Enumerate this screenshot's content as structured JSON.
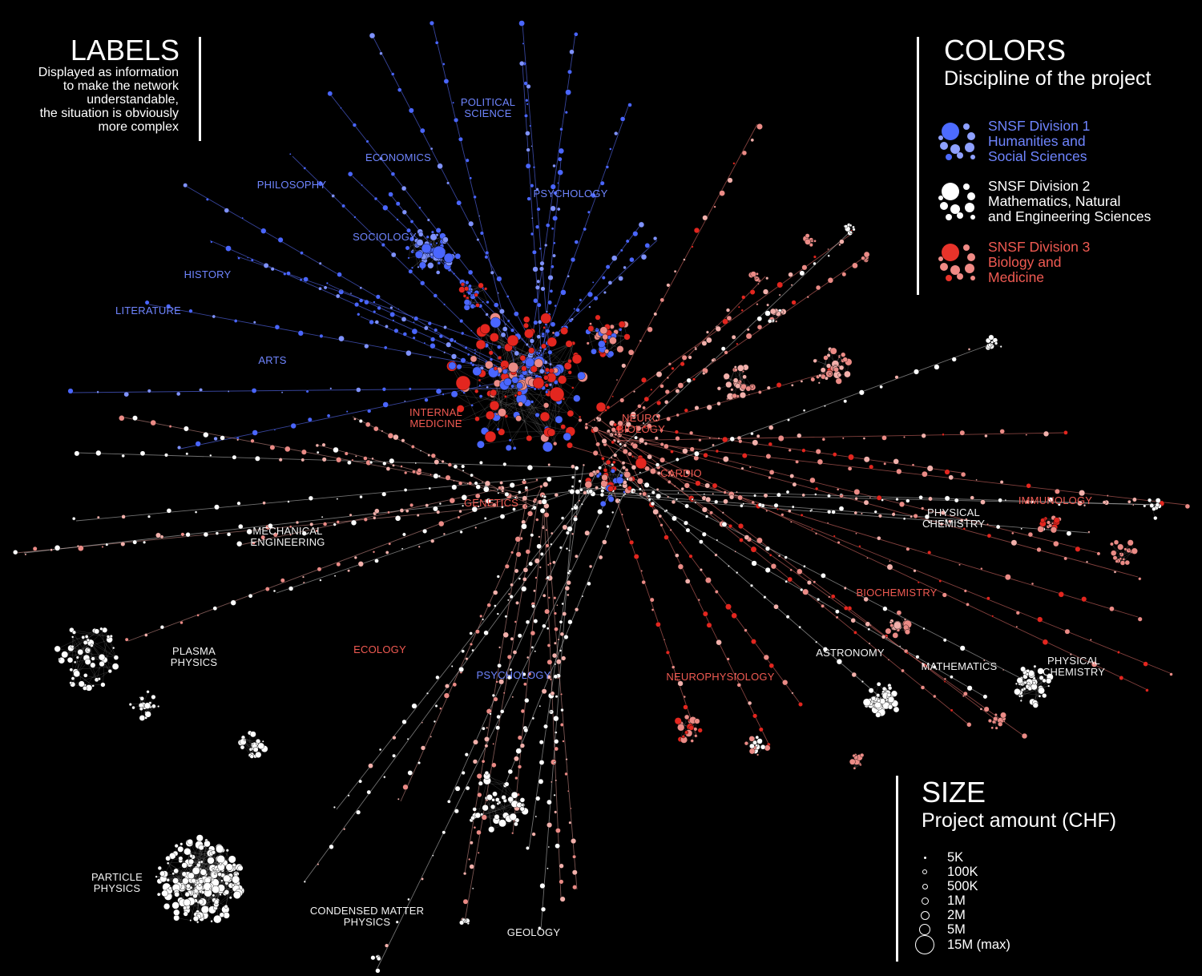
{
  "labels_panel": {
    "title": "LABELS",
    "description": "Displayed as information\nto make the network\nunderstandable,\nthe situation is obviously\nmore complex"
  },
  "colors_panel": {
    "title": "COLORS",
    "subtitle": "Discipline of the project",
    "divisions": [
      {
        "text": "SNSF Division 1\nHumanities and\nSocial Sciences",
        "color": "#4d6bff",
        "light": "#8ea0ff"
      },
      {
        "text": "SNSF Division 2\nMathematics, Natural\nand Engineering Sciences",
        "color": "#ffffff",
        "light": "#ffffff"
      },
      {
        "text": "SNSF Division 3\nBiology and\nMedicine",
        "color": "#e8332a",
        "light": "#f08a85"
      }
    ]
  },
  "size_panel": {
    "title": "SIZE",
    "subtitle": "Project amount (CHF)",
    "entries": [
      {
        "label": "5K",
        "amount": 5000
      },
      {
        "label": "100K",
        "amount": 100000
      },
      {
        "label": "500K",
        "amount": 500000
      },
      {
        "label": "1M",
        "amount": 1000000
      },
      {
        "label": "2M",
        "amount": 2000000
      },
      {
        "label": "5M",
        "amount": 5000000
      },
      {
        "label": "15M (max)",
        "amount": 15000000
      }
    ]
  },
  "network_labels": {
    "political_science": "POLITICAL\nSCIENCE",
    "economics": "ECONOMICS",
    "philosophy": "PHILOSOPHY",
    "psychology_top": "PSYCHOLOGY",
    "sociology": "SOCIOLOGY",
    "history": "HISTORY",
    "literature": "LITERATURE",
    "arts": "ARTS",
    "internal_medicine": "INTERNAL\nMEDICINE",
    "neurobiology": "NEURO\nBIOLOGY",
    "cardio": "CARDIO",
    "genetics": "GENETICS",
    "immunology": "IMMUNOLOGY",
    "biochemistry": "BIOCHEMISTRY",
    "ecology": "ECOLOGY",
    "neurophysiology": "NEUROPHYSIOLOGY",
    "psychology_bottom": "PSYCHOLOGY",
    "mechanical_engineering": "MECHANICAL\nENGINEERING",
    "physical_chemistry_1": "PHYSICAL\nCHEMISTRY",
    "physical_chemistry_2": "PHYSICAL\nCHEMISTRY",
    "astronomy": "ASTRONOMY",
    "mathematics": "MATHEMATICS",
    "plasma_physics": "PLASMA\nPHYSICS",
    "particle_physics": "PARTICLE\nPHYSICS",
    "condensed_matter_physics": "CONDENSED MATTER\nPHYSICS",
    "geology": "GEOLOGY"
  }
}
